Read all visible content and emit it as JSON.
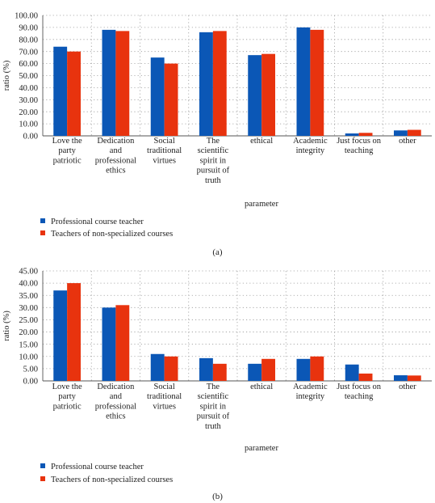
{
  "chart_data": [
    {
      "type": "bar",
      "panel_label": "(a)",
      "xlabel": "parameter",
      "ylabel": "ratio (%)",
      "ylim": [
        0,
        100
      ],
      "yticks": [
        "0.00",
        "10.00",
        "20.00",
        "30.00",
        "40.00",
        "50.00",
        "60.00",
        "70.00",
        "80.00",
        "90.00",
        "100.00"
      ],
      "grid": "dotted horizontal and vertical",
      "legend_position": "bottom-left",
      "categories": [
        [
          "Love the",
          "party",
          "patriotic"
        ],
        [
          "Dedication",
          "and",
          "professional",
          "ethics"
        ],
        [
          "Social",
          "traditional",
          "virtues"
        ],
        [
          "The",
          "scientific",
          "spirit in",
          "pursuit of",
          "truth"
        ],
        [
          "ethical"
        ],
        [
          "Academic",
          "integrity"
        ],
        [
          "Just focus on",
          "teaching"
        ],
        [
          "other"
        ]
      ],
      "series": [
        {
          "name": "Professional course teacher",
          "color": "#0b57b6",
          "values": [
            74,
            88,
            65,
            86,
            67,
            90,
            2,
            4.5
          ]
        },
        {
          "name": "Teachers of non-specialized courses",
          "color": "#e8330e",
          "values": [
            70,
            87,
            60,
            87,
            68,
            88,
            2.5,
            5
          ]
        }
      ]
    },
    {
      "type": "bar",
      "panel_label": "(b)",
      "xlabel": "parameter",
      "ylabel": "ratio (%)",
      "ylim": [
        0,
        45
      ],
      "yticks": [
        "0.00",
        "5.00",
        "10.00",
        "15.00",
        "20.00",
        "25.00",
        "30.00",
        "35.00",
        "40.00",
        "45.00"
      ],
      "grid": "dotted horizontal and vertical",
      "legend_position": "bottom-left",
      "categories": [
        [
          "Love the",
          "party",
          "patriotic"
        ],
        [
          "Dedication",
          "and",
          "professional",
          "ethics"
        ],
        [
          "Social",
          "traditional",
          "virtues"
        ],
        [
          "The",
          "scientific",
          "spirit in",
          "pursuit of",
          "truth"
        ],
        [
          "ethical"
        ],
        [
          "Academic",
          "integrity"
        ],
        [
          "Just focus on",
          "teaching"
        ],
        [
          "other"
        ]
      ],
      "series": [
        {
          "name": "Professional course teacher",
          "color": "#0b57b6",
          "values": [
            37,
            30,
            11,
            9.3,
            7,
            9,
            6.7,
            2.3
          ]
        },
        {
          "name": "Teachers of non-specialized courses",
          "color": "#e8330e",
          "values": [
            40,
            31,
            10,
            7,
            9,
            10,
            3,
            2.2
          ]
        }
      ]
    }
  ]
}
